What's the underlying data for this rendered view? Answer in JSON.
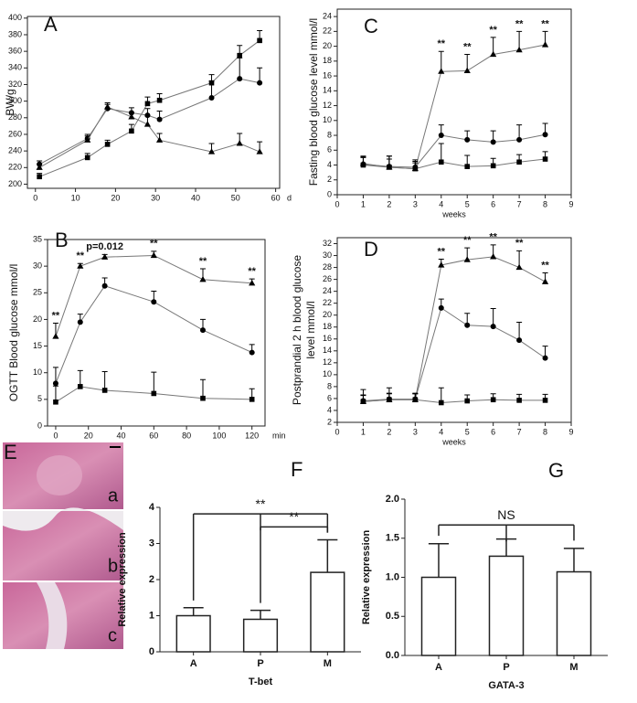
{
  "chart_data": [
    {
      "type": "line",
      "panel": "A",
      "y_label": [
        "BW/g"
      ],
      "x_label": "d",
      "xlim": [
        -2,
        61
      ],
      "xticks": [
        0,
        10,
        20,
        30,
        40,
        50,
        60
      ],
      "ylim": [
        195,
        402
      ],
      "yticks": [
        200,
        220,
        240,
        260,
        280,
        300,
        320,
        340,
        360,
        380,
        400
      ],
      "x": [
        1,
        13,
        18,
        24,
        28,
        31,
        44,
        51,
        56
      ],
      "series": [
        {
          "marker": "square",
          "color": "#000000",
          "values": [
            209,
            232,
            248,
            264,
            297,
            301,
            322,
            355,
            373
          ],
          "errors": [
            4,
            5,
            5,
            8,
            8,
            8,
            10,
            12,
            12
          ]
        },
        {
          "marker": "circle",
          "color": "#000000",
          "values": [
            224,
            255,
            291,
            286,
            283,
            278,
            304,
            327,
            322
          ],
          "errors": [
            4,
            5,
            5,
            6,
            8,
            10,
            20,
            25,
            18
          ]
        },
        {
          "marker": "triangle",
          "color": "#000000",
          "values": [
            220,
            253,
            293,
            281,
            272,
            253,
            239,
            249,
            239
          ],
          "errors": [
            4,
            5,
            5,
            5,
            10,
            8,
            10,
            12,
            12
          ]
        }
      ]
    },
    {
      "type": "line",
      "panel": "C",
      "y_label": [
        "Fasting blood glucose level mmol/l"
      ],
      "x_label": "weeks",
      "xlim": [
        0,
        9
      ],
      "xticks": [
        0,
        1,
        2,
        3,
        4,
        5,
        6,
        7,
        8,
        9
      ],
      "ylim": [
        0,
        25
      ],
      "yticks": [
        0,
        2,
        4,
        6,
        8,
        10,
        12,
        14,
        16,
        18,
        20,
        22,
        24
      ],
      "x": [
        1,
        2,
        3,
        4,
        5,
        6,
        7,
        8
      ],
      "series": [
        {
          "marker": "triangle",
          "color": "#000000",
          "values": [
            4.2,
            3.7,
            3.5,
            16.6,
            16.7,
            18.9,
            19.5,
            20.2
          ],
          "errors": [
            1,
            1.5,
            0.8,
            2.7,
            2.2,
            2.3,
            2.5,
            1.8
          ]
        },
        {
          "marker": "circle",
          "color": "#000000",
          "values": [
            4.1,
            3.8,
            3.7,
            8.0,
            7.4,
            7.1,
            7.4,
            8.1
          ],
          "errors": [
            1,
            1,
            1,
            1.4,
            1.2,
            1.5,
            2,
            1.5
          ]
        },
        {
          "marker": "square",
          "color": "#000000",
          "values": [
            4.0,
            3.7,
            3.5,
            4.4,
            3.8,
            3.9,
            4.4,
            4.8
          ],
          "errors": [
            1,
            1.5,
            1,
            2.5,
            1.5,
            1,
            1,
            1
          ]
        }
      ],
      "annotations": [
        {
          "x": 4,
          "text": "**"
        },
        {
          "x": 5,
          "text": "**"
        },
        {
          "x": 6,
          "text": "**"
        },
        {
          "x": 7,
          "text": "**"
        },
        {
          "x": 8,
          "text": "**"
        }
      ]
    },
    {
      "type": "line",
      "panel": "B",
      "y_label": [
        "OGTT Blood glucose mmol/l"
      ],
      "x_label": "min",
      "xlim": [
        -5,
        128
      ],
      "xticks": [
        0,
        20,
        40,
        60,
        80,
        100,
        120
      ],
      "ylim": [
        0,
        35
      ],
      "yticks": [
        0,
        5,
        10,
        15,
        20,
        25,
        30,
        35
      ],
      "x": [
        0,
        15,
        30,
        60,
        90,
        120
      ],
      "series": [
        {
          "marker": "triangle",
          "color": "#000000",
          "values": [
            16.8,
            30,
            31.7,
            32,
            27.5,
            26.8
          ],
          "errors": [
            2.5,
            0.5,
            0.5,
            0.8,
            2,
            0.8
          ]
        },
        {
          "marker": "circle",
          "color": "#000000",
          "values": [
            8,
            19.5,
            26.3,
            23.3,
            18,
            13.8
          ],
          "errors": [
            3,
            1.5,
            1.5,
            2,
            2,
            1.5
          ]
        },
        {
          "marker": "square",
          "color": "#000000",
          "values": [
            4.5,
            7.4,
            6.7,
            6.1,
            5.2,
            5
          ],
          "errors": [
            3,
            3,
            3.5,
            4,
            3.5,
            2
          ]
        }
      ],
      "annotations": [
        {
          "x": 0,
          "text": "**"
        },
        {
          "x": 15,
          "text": "**"
        },
        {
          "x": 30,
          "text": "p=0.012"
        },
        {
          "x": 60,
          "text": "**"
        },
        {
          "x": 90,
          "text": "**"
        },
        {
          "x": 120,
          "text": "**"
        }
      ]
    },
    {
      "type": "line",
      "panel": "D",
      "y_label": [
        "Postprandial 2 h blood glucose",
        "level mmol/l"
      ],
      "x_label": "weeks",
      "xlim": [
        0,
        9
      ],
      "xticks": [
        0,
        1,
        2,
        3,
        4,
        5,
        6,
        7,
        8,
        9
      ],
      "ylim": [
        2,
        33
      ],
      "yticks": [
        2,
        4,
        6,
        8,
        10,
        12,
        14,
        16,
        18,
        20,
        22,
        24,
        26,
        28,
        30,
        32
      ],
      "x": [
        1,
        2,
        3,
        4,
        5,
        6,
        7,
        8
      ],
      "series": [
        {
          "marker": "triangle",
          "color": "#000000",
          "values": [
            5.5,
            5.8,
            5.8,
            28.4,
            29.3,
            29.8,
            28,
            25.6
          ],
          "errors": [
            1,
            1,
            1,
            1,
            2,
            2,
            2.8,
            1.5
          ]
        },
        {
          "marker": "circle",
          "color": "#000000",
          "values": [
            5.6,
            5.9,
            5.9,
            21.2,
            18.3,
            18.1,
            15.8,
            12.8
          ],
          "errors": [
            1,
            1,
            1,
            1.5,
            2,
            3,
            3,
            2
          ]
        },
        {
          "marker": "square",
          "color": "#000000",
          "values": [
            5.5,
            5.8,
            5.8,
            5.3,
            5.6,
            5.8,
            5.7,
            5.7
          ],
          "errors": [
            2,
            2,
            1,
            2.5,
            1,
            1,
            1,
            1
          ]
        }
      ],
      "annotations": [
        {
          "x": 4,
          "text": "**"
        },
        {
          "x": 5,
          "text": "**"
        },
        {
          "x": 6,
          "text": "**"
        },
        {
          "x": 7,
          "text": "**"
        },
        {
          "x": 8,
          "text": "**"
        }
      ]
    },
    {
      "type": "bar",
      "panel": "F",
      "y_label": [
        "Relative expression"
      ],
      "x_label": "T-bet",
      "categories": [
        "A",
        "P",
        "M"
      ],
      "values": [
        1.0,
        0.9,
        2.2
      ],
      "errors": [
        0.22,
        0.25,
        0.9
      ],
      "color": "#ffffff",
      "ylim": [
        0,
        4
      ],
      "yticks": [
        0,
        1,
        2,
        3,
        4
      ],
      "brackets": [
        {
          "from": 1,
          "to": 2,
          "text": "**"
        },
        {
          "from": 0,
          "to": 2,
          "text": "**"
        }
      ]
    },
    {
      "type": "bar",
      "panel": "G",
      "y_label": [
        "Relative expression"
      ],
      "x_label": "GATA-3",
      "categories": [
        "A",
        "P",
        "M"
      ],
      "values": [
        1.0,
        1.27,
        1.07
      ],
      "errors": [
        0.43,
        0.22,
        0.3
      ],
      "color": "#ffffff",
      "ylim": [
        0,
        2
      ],
      "yticks": [
        {
          "value": 0,
          "label": "0.0"
        },
        0.5,
        {
          "value": 1,
          "label": "1.0"
        },
        1.5,
        {
          "value": 2,
          "label": "2.0"
        }
      ],
      "brackets": [
        {
          "from": 0,
          "to": 2,
          "text": "NS"
        }
      ]
    }
  ],
  "figure_e": {
    "panel": "E",
    "images": [
      "a",
      "b",
      "c"
    ]
  }
}
